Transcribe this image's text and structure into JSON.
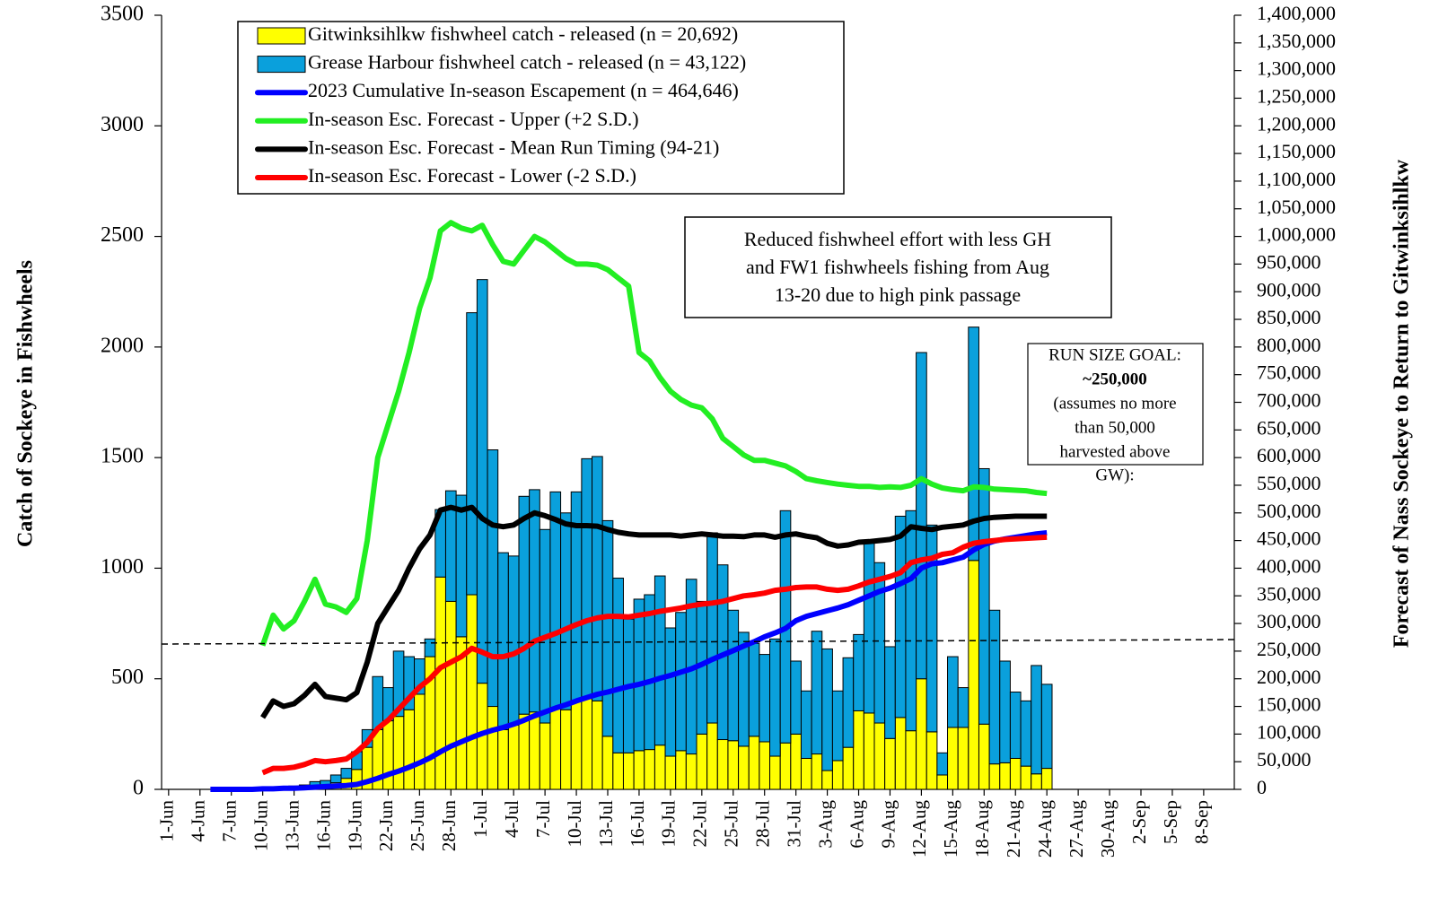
{
  "chart_data": {
    "type": "bar",
    "ylabel": "Catch of Sockeye in Fishwheels",
    "y2label": "Forecast of Nass Sockeye to Return to Gitwinksihlkw",
    "annotation": [
      "Reduced fishwheel effort with less GH",
      "and FW1 fishwheels fishing from Aug",
      "13-20 due to high pink passage"
    ],
    "run_size_goal": [
      "RUN SIZE GOAL:",
      "~250,000",
      "(assumes no more",
      "than 50,000",
      "harvested above",
      "GW):"
    ],
    "categories": [
      "1-Jun",
      null,
      null,
      "4-Jun",
      null,
      null,
      "7-Jun",
      null,
      null,
      "10-Jun",
      null,
      null,
      "13-Jun",
      null,
      null,
      "16-Jun",
      null,
      null,
      "19-Jun",
      null,
      null,
      "22-Jun",
      null,
      null,
      "25-Jun",
      null,
      null,
      "28-Jun",
      null,
      null,
      "1-Jul",
      null,
      null,
      "4-Jul",
      null,
      null,
      "7-Jul",
      null,
      null,
      "10-Jul",
      null,
      null,
      "13-Jul",
      null,
      null,
      "16-Jul",
      null,
      null,
      "19-Jul",
      null,
      null,
      "22-Jul",
      null,
      null,
      "25-Jul",
      null,
      null,
      "28-Jul",
      null,
      null,
      "31-Jul",
      null,
      null,
      "3-Aug",
      null,
      null,
      "6-Aug",
      null,
      null,
      "9-Aug",
      null,
      null,
      "12-Aug",
      null,
      null,
      "15-Aug",
      null,
      null,
      "18-Aug",
      null,
      null,
      "21-Aug",
      null,
      null,
      "24-Aug",
      null,
      null,
      "27-Aug",
      null,
      null,
      "30-Aug",
      null,
      null,
      "2-Sep",
      null,
      null,
      "5-Sep",
      null,
      null,
      "8-Sep",
      null,
      null
    ],
    "ylim": [
      0,
      3500
    ],
    "yticks": [
      0,
      500,
      1000,
      1500,
      2000,
      2500,
      3000,
      3500
    ],
    "y2lim": [
      0,
      1400000
    ],
    "y2ticks": [
      0,
      {
        "value": 50000,
        "label": "50,000"
      },
      {
        "value": 100000,
        "label": "100,000"
      },
      {
        "value": 150000,
        "label": "150,000"
      },
      {
        "value": 200000,
        "label": "200,000"
      },
      {
        "value": 250000,
        "label": "250,000"
      },
      {
        "value": 300000,
        "label": "300,000"
      },
      {
        "value": 350000,
        "label": "350,000"
      },
      {
        "value": 400000,
        "label": "400,000"
      },
      {
        "value": 450000,
        "label": "450,000"
      },
      {
        "value": 500000,
        "label": "500,000"
      },
      {
        "value": 550000,
        "label": "550,000"
      },
      {
        "value": 600000,
        "label": "600,000"
      },
      {
        "value": 650000,
        "label": "650,000"
      },
      {
        "value": 700000,
        "label": "700,000"
      },
      {
        "value": 750000,
        "label": "750,000"
      },
      {
        "value": 800000,
        "label": "800,000"
      },
      {
        "value": 850000,
        "label": "850,000"
      },
      {
        "value": 900000,
        "label": "900,000"
      },
      {
        "value": 950000,
        "label": "950,000"
      },
      {
        "value": 1000000,
        "label": "1,000,000"
      },
      {
        "value": 1050000,
        "label": "1,050,000"
      },
      {
        "value": 1100000,
        "label": "1,100,000"
      },
      {
        "value": 1150000,
        "label": "1,150,000"
      },
      {
        "value": 1200000,
        "label": "1,200,000"
      },
      {
        "value": 1250000,
        "label": "1,250,000"
      },
      {
        "value": 1300000,
        "label": "1,300,000"
      },
      {
        "value": 1350000,
        "label": "1,350,000"
      },
      {
        "value": 1400000,
        "label": "1,400,000"
      }
    ],
    "series": [
      {
        "name": "Gitwinksihlkw fishwheel catch - released (n = 20,692)",
        "type": "bar",
        "color": "#ffff00",
        "values": [
          null,
          null,
          null,
          null,
          null,
          null,
          null,
          null,
          null,
          3,
          5,
          6,
          8,
          10,
          15,
          20,
          30,
          50,
          90,
          190,
          270,
          310,
          330,
          360,
          430,
          600,
          960,
          850,
          690,
          880,
          480,
          375,
          270,
          290,
          340,
          350,
          300,
          370,
          360,
          400,
          410,
          400,
          240,
          165,
          165,
          175,
          180,
          200,
          150,
          175,
          160,
          250,
          300,
          225,
          220,
          195,
          240,
          215,
          150,
          210,
          250,
          140,
          160,
          85,
          130,
          190,
          355,
          345,
          300,
          230,
          325,
          265,
          500,
          260,
          65,
          280,
          280,
          1035,
          295,
          115,
          120,
          140,
          105,
          70,
          95,
          null,
          null,
          null,
          null,
          null,
          null,
          null,
          null,
          null,
          null,
          null,
          null,
          null,
          null,
          null,
          null,
          null
        ]
      },
      {
        "name": "Grease Harbour fishwheel catch - released (n = 43,122)",
        "type": "bar",
        "color": "#0aa0dc",
        "values": [
          null,
          null,
          null,
          null,
          null,
          null,
          null,
          null,
          null,
          2,
          3,
          4,
          7,
          10,
          20,
          20,
          35,
          45,
          80,
          80,
          240,
          150,
          295,
          240,
          160,
          80,
          305,
          500,
          640,
          1275,
          1825,
          1160,
          800,
          765,
          985,
          1005,
          875,
          975,
          890,
          945,
          1085,
          1105,
          975,
          790,
          605,
          685,
          700,
          765,
          580,
          625,
          790,
          600,
          860,
          790,
          590,
          515,
          420,
          395,
          530,
          1050,
          330,
          305,
          555,
          550,
          315,
          405,
          345,
          770,
          725,
          415,
          910,
          995,
          1475,
          935,
          100,
          320,
          180,
          1055,
          1155,
          695,
          460,
          300,
          295,
          490,
          380,
          null,
          null,
          null,
          null,
          null,
          null,
          null,
          null,
          null,
          null,
          null,
          null,
          null,
          null,
          null,
          null,
          null
        ]
      },
      {
        "name": "2023 Cumulative In-season Escapement (n = 464,646)",
        "type": "line",
        "axis": "y2",
        "color": "#0000ff",
        "values": [
          null,
          null,
          null,
          null,
          0,
          0,
          0,
          0,
          0,
          1000,
          1000,
          2000,
          2000,
          3000,
          4000,
          5000,
          6000,
          7000,
          9000,
          14000,
          20000,
          27000,
          33000,
          40000,
          48000,
          57000,
          68000,
          78000,
          86000,
          94000,
          101000,
          107000,
          112000,
          118000,
          125000,
          133000,
          140000,
          147000,
          153000,
          160000,
          166000,
          172000,
          176000,
          181000,
          186000,
          190000,
          195000,
          201000,
          206000,
          212000,
          218000,
          226000,
          235000,
          243000,
          251000,
          259000,
          267000,
          276000,
          283000,
          291000,
          305000,
          313000,
          318000,
          323000,
          328000,
          334000,
          342000,
          350000,
          358000,
          364000,
          372000,
          381000,
          400000,
          408000,
          410000,
          415000,
          420000,
          433000,
          443000,
          449000,
          453000,
          456000,
          459000,
          462000,
          464000,
          null,
          null,
          null,
          null,
          null,
          null,
          null,
          null,
          null,
          null,
          null,
          null,
          null,
          null,
          null,
          null,
          null
        ]
      },
      {
        "name": "In-season Esc. Forecast - Upper (+2 S.D.)",
        "type": "line",
        "axis": "y2",
        "color": "#22ee22",
        "values": [
          null,
          null,
          null,
          null,
          null,
          null,
          null,
          null,
          null,
          260000,
          315000,
          290000,
          305000,
          340000,
          380000,
          335000,
          330000,
          320000,
          345000,
          450000,
          600000,
          660000,
          720000,
          790000,
          870000,
          925000,
          1010000,
          1025000,
          1015000,
          1010000,
          1020000,
          985000,
          955000,
          950000,
          975000,
          1000000,
          990000,
          975000,
          960000,
          950000,
          950000,
          948000,
          940000,
          925000,
          910000,
          790000,
          775000,
          745000,
          720000,
          705000,
          695000,
          690000,
          670000,
          635000,
          620000,
          605000,
          595000,
          595000,
          590000,
          585000,
          575000,
          562000,
          558000,
          555000,
          552000,
          550000,
          548000,
          548000,
          546000,
          547000,
          546000,
          550000,
          562000,
          552000,
          545000,
          542000,
          540000,
          547000,
          546000,
          543000,
          542000,
          541000,
          540000,
          537000,
          535000,
          null,
          null,
          null,
          null,
          null,
          null,
          null,
          null,
          null,
          null,
          null,
          null,
          null,
          null,
          null,
          null,
          null
        ]
      },
      {
        "name": "In-season Esc. Forecast - Mean Run Timing (94-21)",
        "type": "line",
        "axis": "y2",
        "color": "#000000",
        "values": [
          null,
          null,
          null,
          null,
          null,
          null,
          null,
          null,
          null,
          130000,
          160000,
          150000,
          155000,
          170000,
          190000,
          168000,
          165000,
          162000,
          175000,
          230000,
          300000,
          330000,
          360000,
          400000,
          435000,
          460000,
          505000,
          510000,
          505000,
          510000,
          490000,
          478000,
          475000,
          478000,
          490000,
          500000,
          495000,
          488000,
          480000,
          477000,
          477000,
          476000,
          470000,
          465000,
          462000,
          460000,
          460000,
          460000,
          460000,
          458000,
          460000,
          462000,
          460000,
          458000,
          458000,
          457000,
          460000,
          460000,
          456000,
          460000,
          462000,
          458000,
          455000,
          445000,
          440000,
          442000,
          447000,
          448000,
          450000,
          452000,
          458000,
          475000,
          472000,
          470000,
          474000,
          476000,
          478000,
          485000,
          490000,
          492000,
          493000,
          494000,
          494000,
          494000,
          494000,
          null,
          null,
          null,
          null,
          null,
          null,
          null,
          null,
          null,
          null,
          null,
          null,
          null,
          null,
          null,
          null,
          null
        ]
      },
      {
        "name": "In-season Esc. Forecast - Lower (-2 S.D.)",
        "type": "line",
        "axis": "y2",
        "color": "#ff0000",
        "values": [
          null,
          null,
          null,
          null,
          null,
          null,
          null,
          null,
          null,
          30000,
          38000,
          38000,
          40000,
          45000,
          52000,
          50000,
          52000,
          55000,
          68000,
          85000,
          110000,
          125000,
          145000,
          165000,
          185000,
          200000,
          220000,
          230000,
          240000,
          255000,
          248000,
          240000,
          240000,
          245000,
          255000,
          268000,
          275000,
          282000,
          290000,
          298000,
          305000,
          310000,
          313000,
          313000,
          312000,
          315000,
          318000,
          322000,
          325000,
          328000,
          332000,
          335000,
          337000,
          340000,
          345000,
          350000,
          352000,
          355000,
          360000,
          362000,
          365000,
          366000,
          366000,
          362000,
          360000,
          362000,
          368000,
          375000,
          380000,
          385000,
          392000,
          410000,
          415000,
          418000,
          425000,
          428000,
          438000,
          445000,
          448000,
          450000,
          452000,
          453000,
          454000,
          455000,
          456000,
          null,
          null,
          null,
          null,
          null,
          null,
          null,
          null,
          null,
          null,
          null,
          null,
          null,
          null,
          null,
          null,
          null
        ]
      }
    ]
  }
}
